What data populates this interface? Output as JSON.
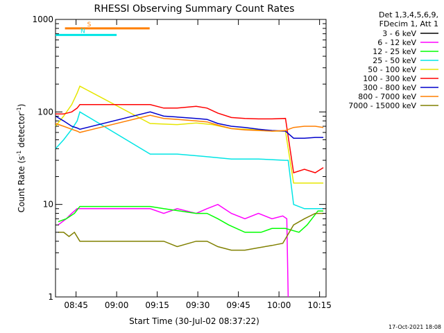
{
  "chart_data": {
    "type": "line",
    "title": "RHESSI Observing Summary Count Rates",
    "xlabel": "Start Time (30-Jul-02 08:37:22)",
    "ylabel_prefix": "Count Rate (s",
    "ylabel_sup1": "-1",
    "ylabel_mid": " detector",
    "ylabel_sup2": "-1",
    "ylabel_suffix": ")",
    "xlim": [
      0,
      100
    ],
    "ylim": [
      1,
      1000
    ],
    "y_scale": "log",
    "xticks": [
      {
        "label": "08:45",
        "value": 7.6
      },
      {
        "label": "09:00",
        "value": 22.6
      },
      {
        "label": "09:15",
        "value": 37.6
      },
      {
        "label": "09:30",
        "value": 52.6
      },
      {
        "label": "09:45",
        "value": 67.6
      },
      {
        "label": "10:00",
        "value": 82.6
      },
      {
        "label": "10:15",
        "value": 97.6
      }
    ],
    "yticks": [
      {
        "label": "1",
        "value": 1
      },
      {
        "label": "10",
        "value": 10
      },
      {
        "label": "100",
        "value": 100
      },
      {
        "label": "1000",
        "value": 1000
      }
    ],
    "legend_header": [
      "Det 1,3,4,5,6,9,",
      "FDecim 1, Att 1"
    ],
    "timestamp": "17-Oct-2021 18:08",
    "flags": [
      {
        "label": "S",
        "color": "#ff7f00",
        "x1": 3.5,
        "x2": 34.8,
        "level": 800
      },
      {
        "label": "N",
        "color": "#00e5e5",
        "x1": 0,
        "x2": 22.6,
        "level": 680
      }
    ],
    "series": [
      {
        "name": "3 - 6 keV",
        "color": "#000000",
        "points": []
      },
      {
        "name": "6 - 12 keV",
        "color": "#ff00ff",
        "points": [
          [
            1,
            6
          ],
          [
            4,
            7
          ],
          [
            6,
            8
          ],
          [
            8,
            9
          ],
          [
            35,
            9
          ],
          [
            40,
            8
          ],
          [
            45,
            9
          ],
          [
            52,
            8
          ],
          [
            56,
            9
          ],
          [
            60,
            10
          ],
          [
            65,
            8
          ],
          [
            70,
            7
          ],
          [
            75,
            8
          ],
          [
            80,
            7
          ],
          [
            84,
            7.5
          ],
          [
            85.5,
            7
          ],
          [
            86,
            1
          ]
        ]
      },
      {
        "name": "12 - 25 keV",
        "color": "#00ff00",
        "points": [
          [
            1,
            6.5
          ],
          [
            4,
            7
          ],
          [
            7,
            8
          ],
          [
            9,
            9.5
          ],
          [
            35,
            9.5
          ],
          [
            40,
            9
          ],
          [
            46,
            8.5
          ],
          [
            52,
            8
          ],
          [
            56,
            8
          ],
          [
            60,
            7
          ],
          [
            64,
            6
          ],
          [
            70,
            5
          ],
          [
            76,
            5
          ],
          [
            80,
            5.5
          ],
          [
            85,
            5.5
          ],
          [
            90,
            5
          ],
          [
            93,
            6
          ],
          [
            97,
            8.5
          ],
          [
            99,
            8.5
          ]
        ]
      },
      {
        "name": "25 - 50 keV",
        "color": "#00e5e5",
        "points": [
          [
            0,
            40
          ],
          [
            3,
            50
          ],
          [
            6,
            65
          ],
          [
            8,
            80
          ],
          [
            9,
            100
          ],
          [
            35,
            35
          ],
          [
            45,
            35
          ],
          [
            55,
            33
          ],
          [
            65,
            31
          ],
          [
            75,
            31
          ],
          [
            85,
            30
          ],
          [
            86,
            30
          ],
          [
            88,
            10
          ],
          [
            92,
            9
          ],
          [
            96,
            9
          ],
          [
            99,
            9
          ]
        ]
      },
      {
        "name": "50 - 100 keV",
        "color": "#e6e600",
        "points": [
          [
            0,
            70
          ],
          [
            3,
            90
          ],
          [
            6,
            120
          ],
          [
            8,
            160
          ],
          [
            9,
            190
          ],
          [
            35,
            75
          ],
          [
            45,
            73
          ],
          [
            52,
            76
          ],
          [
            58,
            73
          ],
          [
            65,
            66
          ],
          [
            75,
            64
          ],
          [
            80,
            62
          ],
          [
            85,
            62
          ],
          [
            88,
            17
          ],
          [
            92,
            17
          ],
          [
            99,
            17
          ]
        ]
      },
      {
        "name": "100 - 300 keV",
        "color": "#ff0000",
        "points": [
          [
            0,
            95
          ],
          [
            3,
            95
          ],
          [
            6,
            100
          ],
          [
            8,
            110
          ],
          [
            9,
            120
          ],
          [
            35,
            120
          ],
          [
            40,
            110
          ],
          [
            45,
            110
          ],
          [
            52,
            115
          ],
          [
            56,
            110
          ],
          [
            60,
            97
          ],
          [
            65,
            87
          ],
          [
            70,
            85
          ],
          [
            75,
            84
          ],
          [
            80,
            84
          ],
          [
            85,
            85
          ],
          [
            88,
            22
          ],
          [
            92,
            24
          ],
          [
            96,
            22
          ],
          [
            99,
            25
          ]
        ]
      },
      {
        "name": "300 - 800 keV",
        "color": "#0000cc",
        "points": [
          [
            0,
            90
          ],
          [
            3,
            80
          ],
          [
            6,
            70
          ],
          [
            8,
            67
          ],
          [
            9,
            65
          ],
          [
            35,
            100
          ],
          [
            40,
            90
          ],
          [
            45,
            88
          ],
          [
            52,
            85
          ],
          [
            56,
            83
          ],
          [
            60,
            75
          ],
          [
            65,
            70
          ],
          [
            70,
            68
          ],
          [
            75,
            65
          ],
          [
            80,
            63
          ],
          [
            85,
            62
          ],
          [
            88,
            52
          ],
          [
            92,
            52
          ],
          [
            96,
            53
          ],
          [
            99,
            53
          ]
        ]
      },
      {
        "name": "800 - 7000 keV",
        "color": "#ff7f00",
        "points": [
          [
            0,
            75
          ],
          [
            3,
            70
          ],
          [
            6,
            65
          ],
          [
            8,
            62
          ],
          [
            9,
            60
          ],
          [
            35,
            92
          ],
          [
            40,
            85
          ],
          [
            45,
            83
          ],
          [
            52,
            80
          ],
          [
            56,
            78
          ],
          [
            60,
            72
          ],
          [
            65,
            66
          ],
          [
            70,
            64
          ],
          [
            75,
            63
          ],
          [
            80,
            62
          ],
          [
            85,
            63
          ],
          [
            88,
            68
          ],
          [
            92,
            70
          ],
          [
            96,
            70
          ],
          [
            99,
            68
          ]
        ]
      },
      {
        "name": "7000 - 15000 keV",
        "color": "#808000",
        "points": [
          [
            1,
            5
          ],
          [
            3,
            5
          ],
          [
            5,
            4.5
          ],
          [
            7,
            5
          ],
          [
            9,
            4
          ],
          [
            35,
            4
          ],
          [
            40,
            4
          ],
          [
            45,
            3.5
          ],
          [
            52,
            4
          ],
          [
            56,
            4
          ],
          [
            60,
            3.5
          ],
          [
            65,
            3.2
          ],
          [
            70,
            3.2
          ],
          [
            75,
            3.4
          ],
          [
            80,
            3.6
          ],
          [
            84,
            3.8
          ],
          [
            88,
            6
          ],
          [
            92,
            7
          ],
          [
            96,
            8
          ],
          [
            99,
            8
          ]
        ]
      }
    ]
  }
}
